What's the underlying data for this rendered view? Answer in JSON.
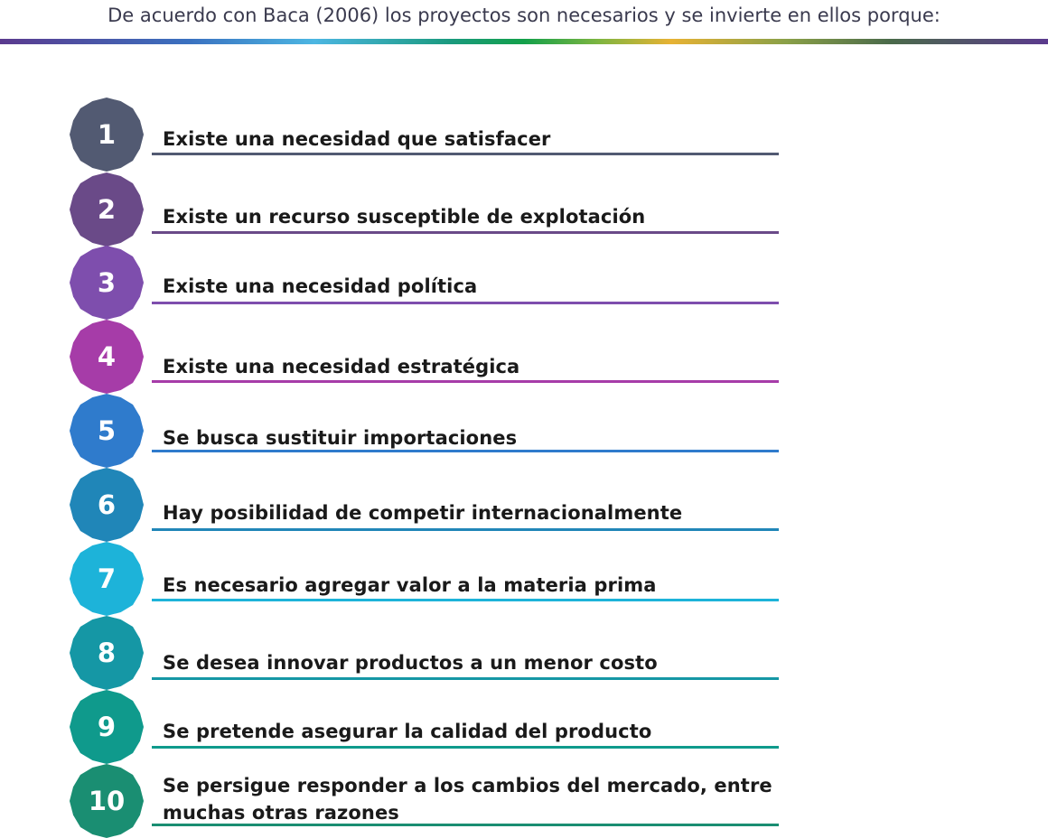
{
  "intro": "De acuerdo con Baca (2006) los proyectos son necesarios y se invierte en ellos porque:",
  "items": [
    {
      "number": "1",
      "text": "Existe una necesidad que satisfacer",
      "color": "#525a72"
    },
    {
      "number": "2",
      "text": "Existe un recurso susceptible de explotación",
      "color": "#6a4a88"
    },
    {
      "number": "3",
      "text": "Existe una necesidad política",
      "color": "#7e4ead"
    },
    {
      "number": "4",
      "text": "Existe una necesidad estratégica",
      "color": "#a63ca8"
    },
    {
      "number": "5",
      "text": "Se busca sustituir importaciones",
      "color": "#2f7bcc"
    },
    {
      "number": "6",
      "text": "Hay posibilidad de competir internacionalmente",
      "color": "#2086b8"
    },
    {
      "number": "7",
      "text": "Es necesario agregar valor a la materia prima",
      "color": "#1db3d9"
    },
    {
      "number": "8",
      "text": "Se desea innovar productos a un menor costo",
      "color": "#1597a5"
    },
    {
      "number": "9",
      "text": "Se pretende asegurar la calidad del producto",
      "color": "#0f9a8c"
    },
    {
      "number": "10",
      "text": "Se persigue responder a los cambios del mercado, entre muchas otras razones",
      "color": "#1a8e72"
    }
  ]
}
